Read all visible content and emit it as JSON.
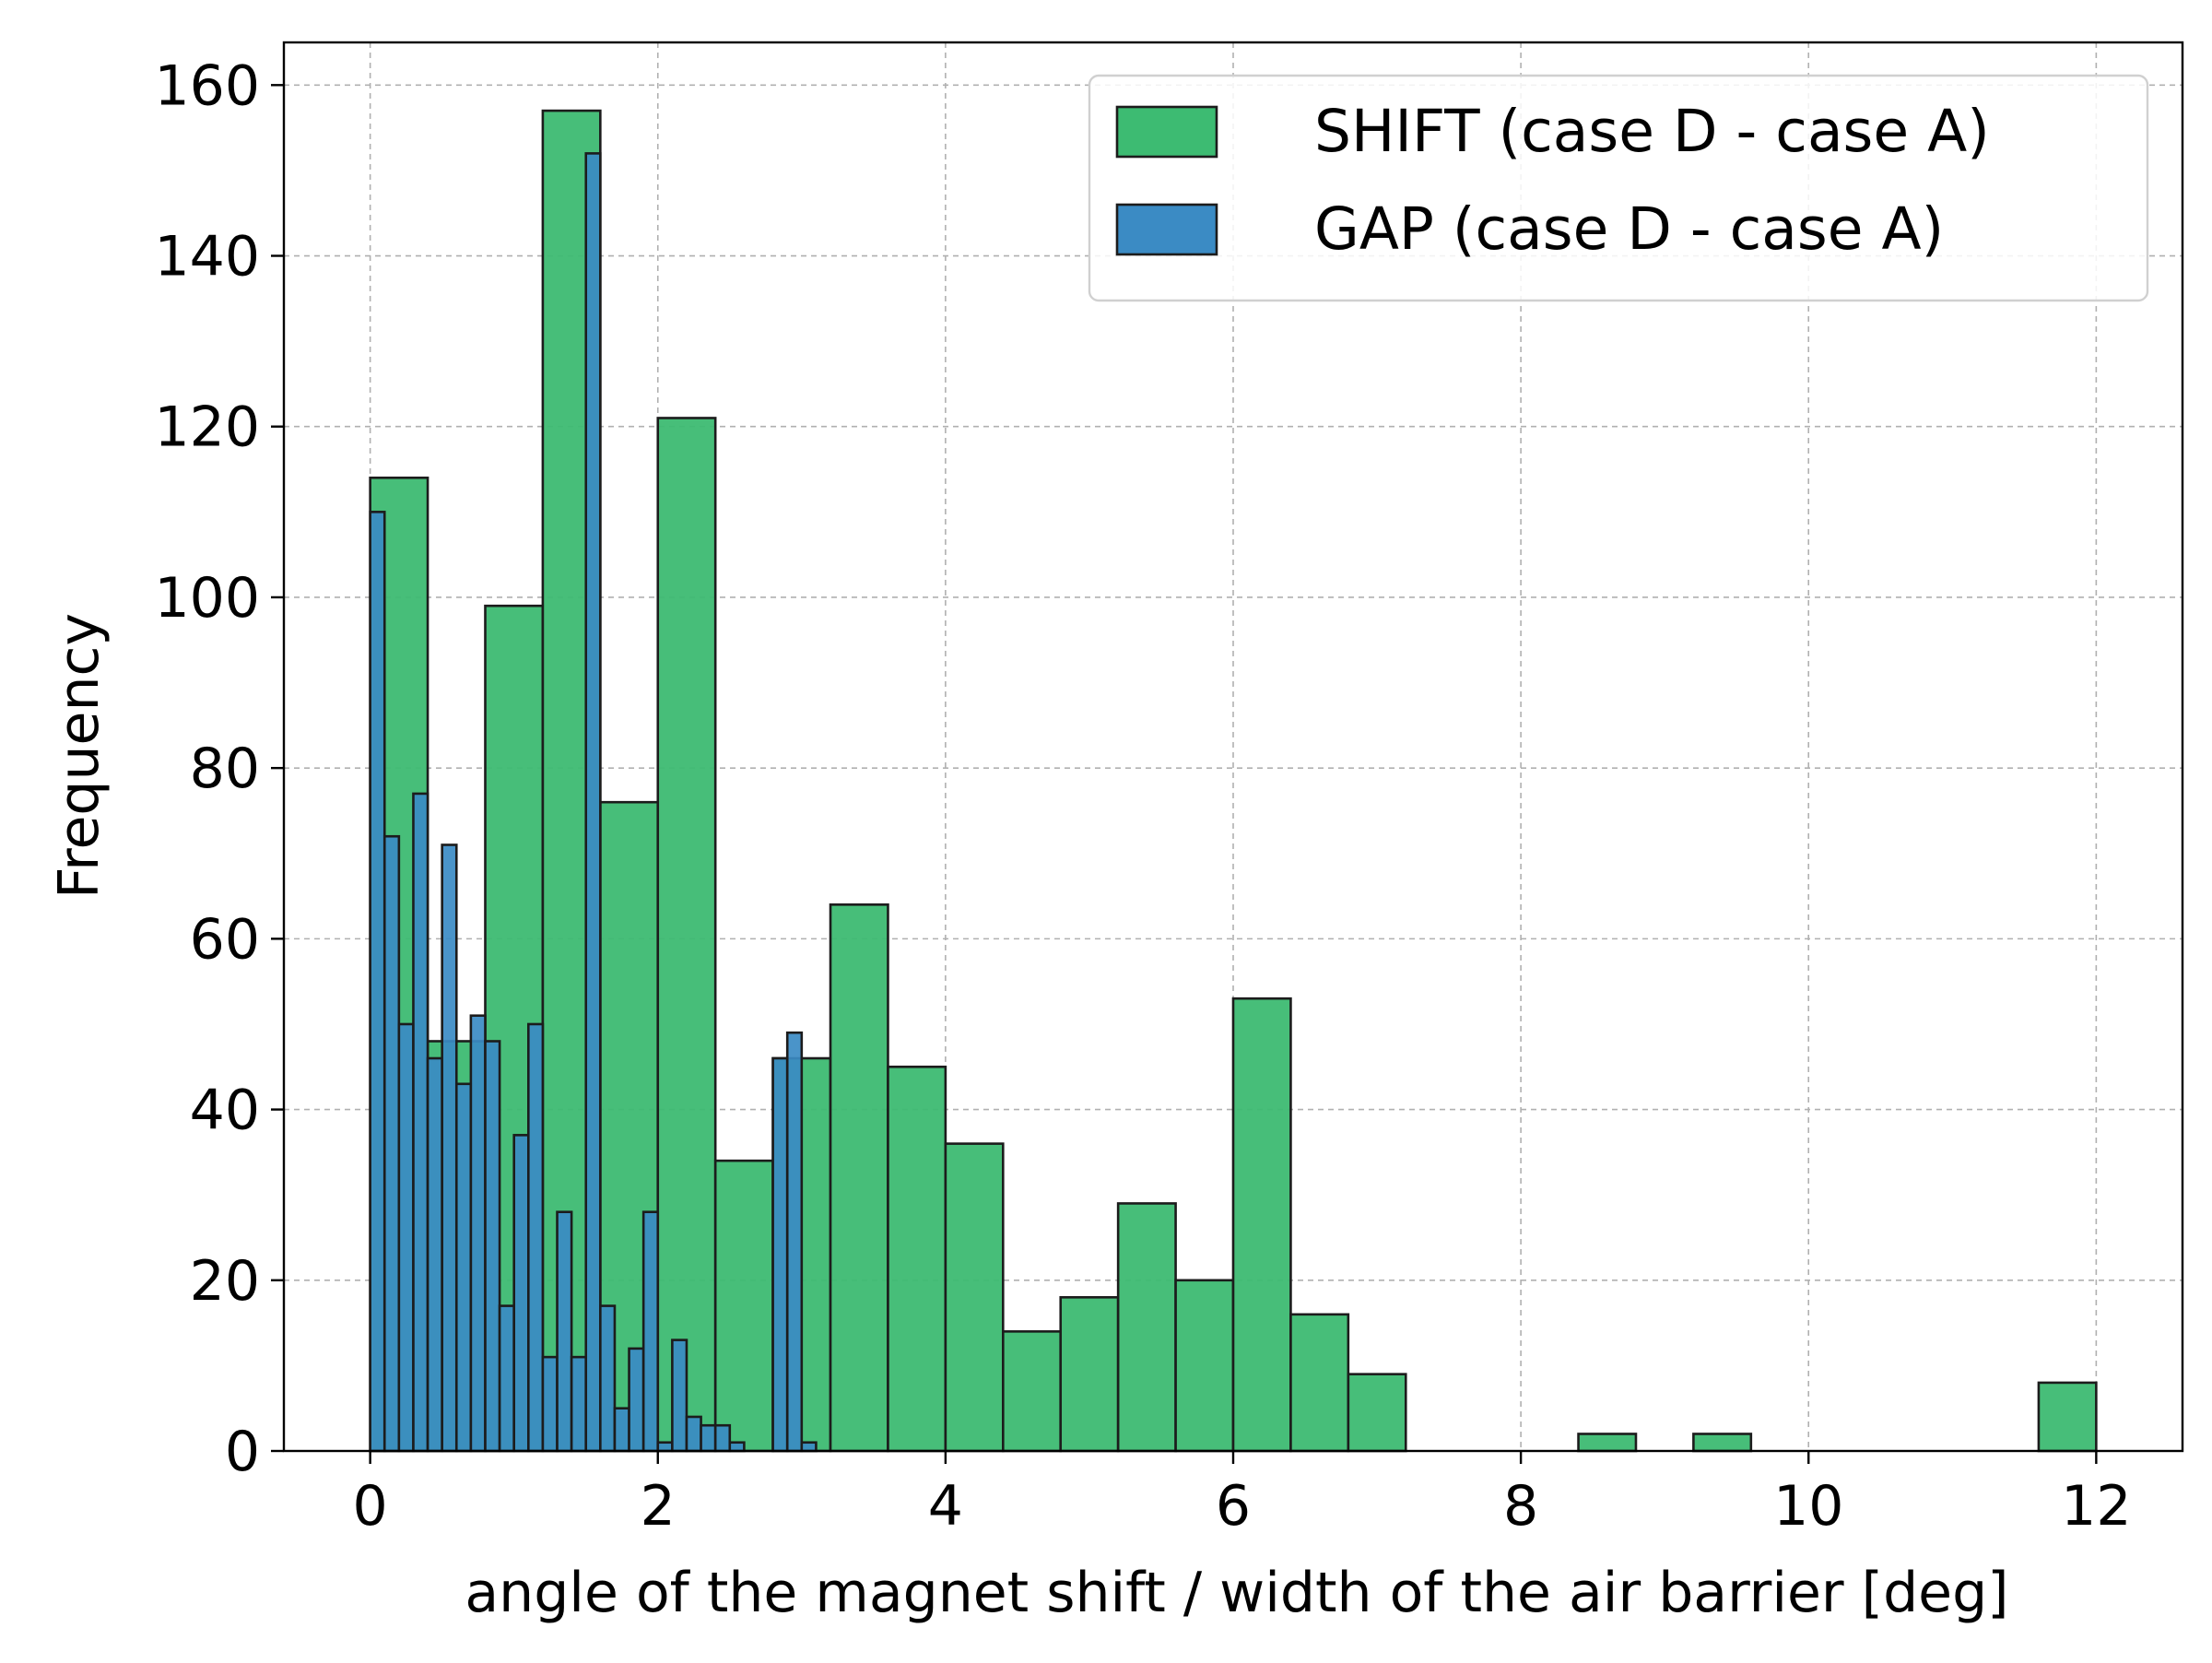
{
  "chart_data": {
    "type": "bar",
    "xlabel": "angle of the magnet shift / width of the air barrier [deg]",
    "ylabel": "Frequency",
    "xlim": [
      -0.6,
      12.6
    ],
    "ylim": [
      0,
      165
    ],
    "x_ticks": [
      "0",
      "2",
      "4",
      "6",
      "8",
      "10",
      "12"
    ],
    "y_ticks": [
      "0",
      "20",
      "40",
      "60",
      "80",
      "100",
      "120",
      "140",
      "160"
    ],
    "grid": true,
    "legend_position": "upper right",
    "series": [
      {
        "name": "SHIFT (case D - case A)",
        "color": "#3dbb72",
        "bin_start": 0.0,
        "bin_width": 0.4,
        "values": [
          114,
          48,
          99,
          157,
          76,
          121,
          34,
          46,
          64,
          45,
          36,
          14,
          18,
          29,
          20,
          53,
          16,
          9,
          0,
          0,
          0,
          2,
          0,
          2,
          0,
          0,
          0,
          0,
          0,
          8
        ]
      },
      {
        "name": "GAP (case D - case A)",
        "color": "#3b8bc4",
        "bin_start": 0.0,
        "bin_width": 0.1,
        "values": [
          110,
          72,
          50,
          77,
          46,
          71,
          43,
          51,
          48,
          17,
          37,
          50,
          11,
          28,
          11,
          152,
          17,
          5,
          12,
          28,
          1,
          13,
          4,
          3,
          3,
          1,
          0,
          0,
          46,
          49,
          1
        ]
      }
    ]
  }
}
